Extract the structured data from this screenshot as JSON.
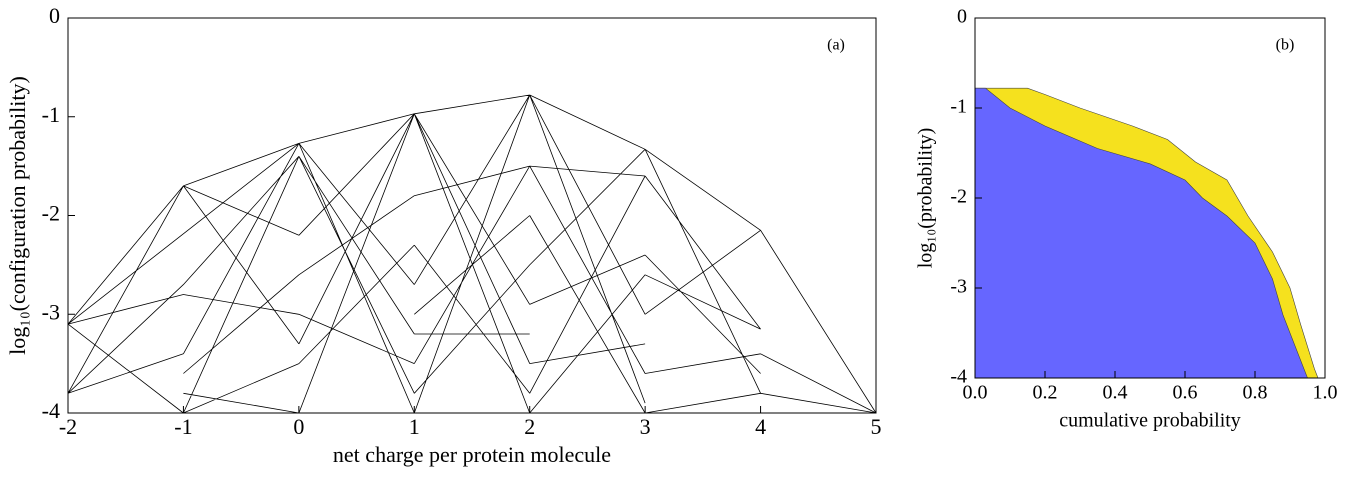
{
  "chart_data": [
    {
      "type": "line",
      "annotation": "(a)",
      "xlabel": "net charge per protein molecule",
      "ylabel": "log₁₀(configuration probability)",
      "xlim": [
        -2,
        5
      ],
      "xticks": [
        -2,
        -1,
        0,
        1,
        2,
        3,
        4,
        5
      ],
      "ylim": [
        -4,
        0
      ],
      "yticks": [
        -4,
        -3,
        -2,
        -1,
        0
      ],
      "series": [
        {
          "color": "#000000",
          "x": [
            -2,
            -1,
            null,
            -2,
            -1,
            null,
            -2,
            -1,
            null,
            -2,
            -1,
            null,
            -2,
            -1,
            null,
            -2,
            -1,
            null,
            -2,
            0,
            null,
            -1,
            0,
            null,
            -1,
            0,
            null,
            -1,
            0,
            null,
            -1,
            0,
            null,
            -1,
            0,
            null,
            -1,
            0,
            null,
            -1,
            0,
            null,
            -1,
            0,
            null,
            -1,
            0,
            null,
            -1,
            0,
            null,
            0,
            1,
            null,
            0,
            1,
            null,
            0,
            1,
            null,
            0,
            1,
            null,
            0,
            1,
            null,
            0,
            1,
            null,
            0,
            1,
            null,
            0,
            1,
            null,
            0,
            1,
            null,
            0,
            1,
            null,
            0,
            1,
            null,
            0,
            1,
            null,
            1,
            2,
            null,
            1,
            2,
            null,
            1,
            2,
            null,
            1,
            2,
            null,
            1,
            2,
            null,
            1,
            2,
            null,
            1,
            2,
            null,
            1,
            2,
            null,
            1,
            2,
            null,
            1,
            2,
            null,
            1,
            2,
            null,
            1,
            2,
            null,
            2,
            3,
            null,
            2,
            3,
            null,
            2,
            3,
            null,
            2,
            3,
            null,
            2,
            3,
            null,
            2,
            3,
            null,
            2,
            3,
            null,
            2,
            3,
            null,
            2,
            3,
            null,
            2,
            3,
            null,
            2,
            3,
            null,
            3,
            4,
            null,
            3,
            4,
            null,
            3,
            4,
            null,
            3,
            4,
            null,
            3,
            4,
            null,
            3,
            4,
            null,
            3,
            4,
            null,
            3,
            4,
            null,
            4,
            5,
            null,
            4,
            5,
            null,
            4,
            5
          ],
          "y": [
            -3.1,
            -1.7,
            null,
            -3.1,
            -2.8,
            null,
            -3.1,
            -4,
            null,
            -3.8,
            -1.7,
            null,
            -3.8,
            -2.7,
            null,
            -3.8,
            -3.4,
            null,
            -3.1,
            -1.27,
            null,
            -1.7,
            -1.27,
            null,
            -1.7,
            -2.2,
            null,
            -1.7,
            -3.3,
            null,
            -2.7,
            -1.4,
            null,
            -2.8,
            -3.0,
            null,
            -3.4,
            -1.27,
            null,
            -3.6,
            -2.6,
            null,
            -4,
            -1.4,
            null,
            -4,
            -3.5,
            null,
            -3.8,
            -4,
            null,
            -1.27,
            -0.97,
            null,
            -1.27,
            -2.7,
            null,
            -1.4,
            -3.2,
            null,
            -1.4,
            -3.8,
            null,
            -2.2,
            -0.97,
            null,
            -2.6,
            -1.8,
            null,
            -3.0,
            -3.5,
            null,
            -3.3,
            -0.97,
            null,
            -3.5,
            -2.3,
            null,
            -4,
            -4,
            null,
            -1.27,
            -4,
            null,
            -4,
            -0.97,
            null,
            -0.97,
            -0.78,
            null,
            -0.97,
            -2.9,
            null,
            -0.97,
            -3.5,
            null,
            -0.97,
            -4,
            null,
            -1.8,
            -1.5,
            null,
            -2.3,
            -3.8,
            null,
            -2.7,
            -0.78,
            null,
            -3.0,
            -2.0,
            null,
            -3.2,
            -3.2,
            null,
            -3.5,
            -1.5,
            null,
            -3.8,
            -2.5,
            null,
            -4,
            -0.78,
            null,
            -0.78,
            -1.33,
            null,
            -0.78,
            -3.0,
            null,
            -0.78,
            -3.9,
            null,
            -1.5,
            -3.6,
            null,
            -1.5,
            -1.6,
            null,
            -2.0,
            -4,
            null,
            -2.5,
            -1.33,
            null,
            -2.9,
            -2.4,
            null,
            -3.5,
            -3.3,
            null,
            -4,
            -2.6,
            null,
            -3.8,
            -1.6,
            null,
            -1.33,
            -2.15,
            null,
            -1.33,
            -3.8,
            null,
            -1.6,
            -3.15,
            null,
            -2.4,
            -3.6,
            null,
            -3.0,
            -2.15,
            null,
            -3.6,
            -3.4,
            null,
            -4,
            -3.8,
            null,
            -2.6,
            -3.15,
            null,
            -2.15,
            -4,
            null,
            -3.4,
            -4,
            null,
            -3.8,
            -4
          ]
        }
      ]
    },
    {
      "type": "area",
      "annotation": "(b)",
      "xlabel": "cumulative probability",
      "ylabel": "log₁₀(probability)",
      "xlim": [
        0,
        1
      ],
      "xticks": [
        {
          "value": 0,
          "label": "0.0"
        },
        0.2,
        0.4,
        0.6,
        0.8,
        {
          "value": 1,
          "label": "1.0"
        }
      ],
      "ylim": [
        -4,
        0
      ],
      "yticks": [
        -4,
        -3,
        -2,
        -1,
        0
      ],
      "series": [
        {
          "color": "#f5e11e",
          "x": [
            0,
            0.03,
            0.15,
            0.2,
            0.3,
            0.45,
            0.55,
            0.63,
            0.72,
            0.78,
            0.85,
            0.9,
            0.93,
            0.97,
            0.98
          ],
          "y": [
            -0.78,
            -0.78,
            -0.78,
            -0.85,
            -1.0,
            -1.2,
            -1.35,
            -1.6,
            -1.8,
            -2.2,
            -2.6,
            -3.0,
            -3.4,
            -3.9,
            -4
          ]
        },
        {
          "color": "#6666ff",
          "x": [
            0,
            0.03,
            0.1,
            0.2,
            0.35,
            0.5,
            0.6,
            0.65,
            0.72,
            0.8,
            0.85,
            0.88,
            0.92,
            0.95
          ],
          "y": [
            -0.78,
            -0.78,
            -1.0,
            -1.2,
            -1.45,
            -1.62,
            -1.8,
            -2.0,
            -2.2,
            -2.5,
            -2.9,
            -3.3,
            -3.7,
            -4
          ]
        }
      ]
    }
  ]
}
